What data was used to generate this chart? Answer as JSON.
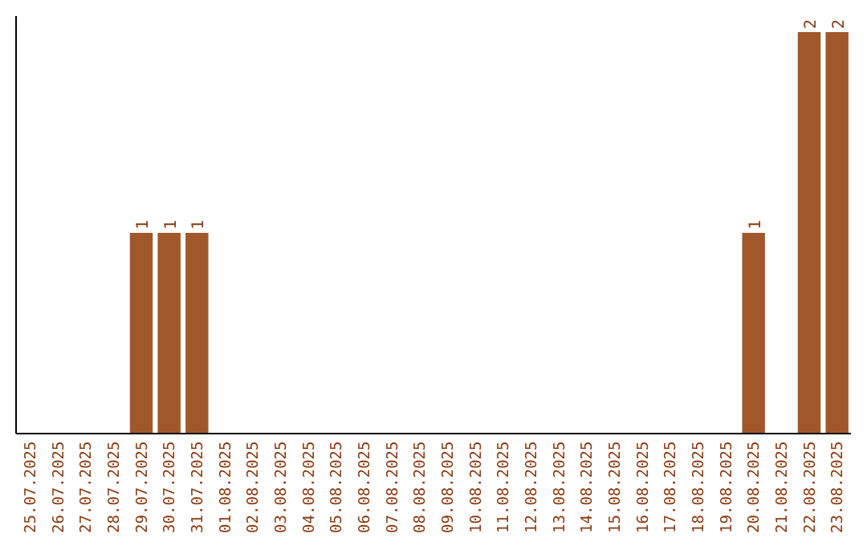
{
  "chart_data": {
    "type": "bar",
    "categories": [
      "25.07.2025",
      "26.07.2025",
      "27.07.2025",
      "28.07.2025",
      "29.07.2025",
      "30.07.2025",
      "31.07.2025",
      "01.08.2025",
      "02.08.2025",
      "03.08.2025",
      "04.08.2025",
      "05.08.2025",
      "06.08.2025",
      "07.08.2025",
      "08.08.2025",
      "09.08.2025",
      "10.08.2025",
      "11.08.2025",
      "12.08.2025",
      "13.08.2025",
      "14.08.2025",
      "15.08.2025",
      "16.08.2025",
      "17.08.2025",
      "18.08.2025",
      "19.08.2025",
      "20.08.2025",
      "21.08.2025",
      "22.08.2025",
      "23.08.2025"
    ],
    "values": [
      0,
      0,
      0,
      0,
      1,
      1,
      1,
      0,
      0,
      0,
      0,
      0,
      0,
      0,
      0,
      0,
      0,
      0,
      0,
      0,
      0,
      0,
      0,
      0,
      0,
      0,
      1,
      0,
      2,
      2
    ],
    "value_labels": [
      null,
      null,
      null,
      null,
      "1",
      "1",
      "1",
      null,
      null,
      null,
      null,
      null,
      null,
      null,
      null,
      null,
      null,
      null,
      null,
      null,
      null,
      null,
      null,
      null,
      null,
      null,
      "1",
      null,
      "2",
      "2"
    ],
    "color": "#a0582a",
    "tick_labels": "x",
    "grid": false
  }
}
